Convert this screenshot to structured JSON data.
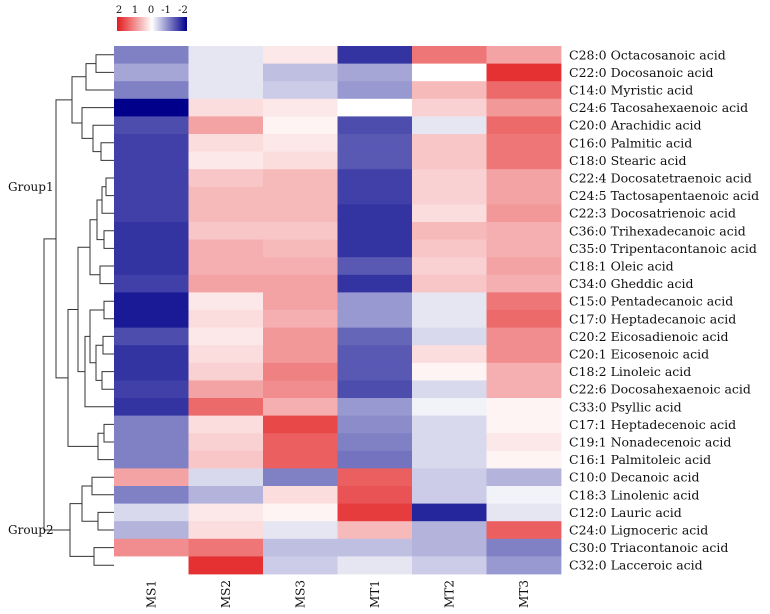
{
  "chart_data": {
    "type": "heatmap",
    "columns": [
      "MS1",
      "MS2",
      "MS3",
      "MT1",
      "MT2",
      "MT3"
    ],
    "rows": [
      "C28:0 Octacosanoic acid",
      "C22:0 Docosanoic acid",
      "C14:0 Myristic acid",
      "C24:6 Tacosahexaenoic acid",
      "C20:0 Arachidic acid",
      "C16:0 Palmitic acid",
      "C18:0 Stearic acid",
      "C22:4 Docosatetraenoic acid",
      "C24:5 Tactosapentaenoic acid",
      "C22:3 Docosatrienoic acid",
      "C36:0 Trihexadecanoic acid",
      "C35:0 Tripentacontanoic acid",
      "C18:1 Oleic acid",
      "C34:0 Gheddic acid",
      "C15:0 Pentadecanoic acid",
      "C17:0 Heptadecanoic acid",
      "C20:2 Eicosadienoic acid",
      "C20:1 Eicosenoic acid",
      "C18:2 Linoleic acid",
      "C22:6 Docosahexaenoic acid",
      "C33:0 Psyllic acid",
      "C17:1 Heptadecenoic acid",
      "C19:1 Nonadecenoic acid",
      "C16:1 Palmitoleic acid",
      "C10:0 Decanoic acid",
      "C18:3 Linolenic acid",
      "C12:0 Lauric acid",
      "C24:0 Lignoceric acid",
      "C30:0 Triacontanoic acid",
      "C32:0 Lacceroic acid"
    ],
    "values": [
      [
        -1.0,
        -0.2,
        0.2,
        -1.6,
        1.2,
        0.8
      ],
      [
        -0.7,
        -0.2,
        -0.5,
        -0.7,
        0.0,
        1.8
      ],
      [
        -1.0,
        -0.2,
        -0.4,
        -0.8,
        0.6,
        1.3
      ],
      [
        -2.0,
        0.3,
        0.2,
        0.0,
        0.4,
        0.9
      ],
      [
        -1.4,
        0.8,
        0.1,
        -1.4,
        -0.2,
        1.3
      ],
      [
        -1.5,
        0.3,
        0.2,
        -1.3,
        0.5,
        1.2
      ],
      [
        -1.5,
        0.2,
        0.3,
        -1.3,
        0.5,
        1.2
      ],
      [
        -1.5,
        0.5,
        0.6,
        -1.5,
        0.4,
        0.8
      ],
      [
        -1.5,
        0.6,
        0.6,
        -1.5,
        0.4,
        0.8
      ],
      [
        -1.5,
        0.6,
        0.6,
        -1.6,
        0.3,
        0.9
      ],
      [
        -1.6,
        0.5,
        0.5,
        -1.6,
        0.6,
        0.7
      ],
      [
        -1.6,
        0.7,
        0.6,
        -1.6,
        0.5,
        0.7
      ],
      [
        -1.6,
        0.7,
        0.7,
        -1.3,
        0.4,
        0.8
      ],
      [
        -1.5,
        0.8,
        0.8,
        -1.6,
        0.5,
        0.7
      ],
      [
        -1.8,
        0.2,
        0.8,
        -0.8,
        -0.2,
        1.2
      ],
      [
        -1.8,
        0.3,
        0.7,
        -0.8,
        -0.2,
        1.3
      ],
      [
        -1.4,
        0.2,
        0.9,
        -1.2,
        -0.3,
        1.0
      ],
      [
        -1.6,
        0.3,
        0.9,
        -1.3,
        0.3,
        1.0
      ],
      [
        -1.6,
        0.4,
        1.1,
        -1.3,
        0.1,
        0.7
      ],
      [
        -1.5,
        0.8,
        1.0,
        -1.4,
        -0.3,
        0.7
      ],
      [
        -1.6,
        1.3,
        0.7,
        -0.8,
        -0.1,
        0.1
      ],
      [
        -1.0,
        0.3,
        1.6,
        -0.9,
        -0.3,
        0.1
      ],
      [
        -1.0,
        0.4,
        1.4,
        -1.0,
        -0.3,
        0.2
      ],
      [
        -1.0,
        0.5,
        1.4,
        -1.1,
        -0.3,
        0.1
      ],
      [
        0.8,
        -0.3,
        -1.0,
        1.4,
        -0.4,
        -0.6
      ],
      [
        -1.0,
        -0.6,
        0.3,
        1.5,
        -0.4,
        -0.1
      ],
      [
        -0.3,
        0.2,
        0.1,
        1.7,
        -1.7,
        -0.2
      ],
      [
        -0.6,
        0.3,
        -0.2,
        0.6,
        -0.6,
        1.4
      ],
      [
        1.0,
        1.2,
        -0.5,
        -0.5,
        -0.6,
        -1.0
      ],
      [
        0.0,
        1.8,
        -0.4,
        -0.2,
        -0.4,
        -0.8
      ]
    ],
    "color_scale": {
      "min": -2,
      "max": 2,
      "low": "#00008b",
      "mid": "#ffffff",
      "high": "#e31a1c"
    },
    "legend": {
      "ticks": [
        "2",
        "1",
        "0",
        "-1",
        "-2"
      ],
      "placement": "top-left"
    },
    "row_groups": [
      {
        "name": "Group1",
        "rows": "C28:0 Octacosanoic acid … C16:1 Palmitoleic acid"
      },
      {
        "name": "Group2",
        "rows": "C10:0 Decanoic acid … C32:0 Lacceroic acid"
      }
    ],
    "group_labels": [
      "Group1",
      "Group2"
    ]
  }
}
